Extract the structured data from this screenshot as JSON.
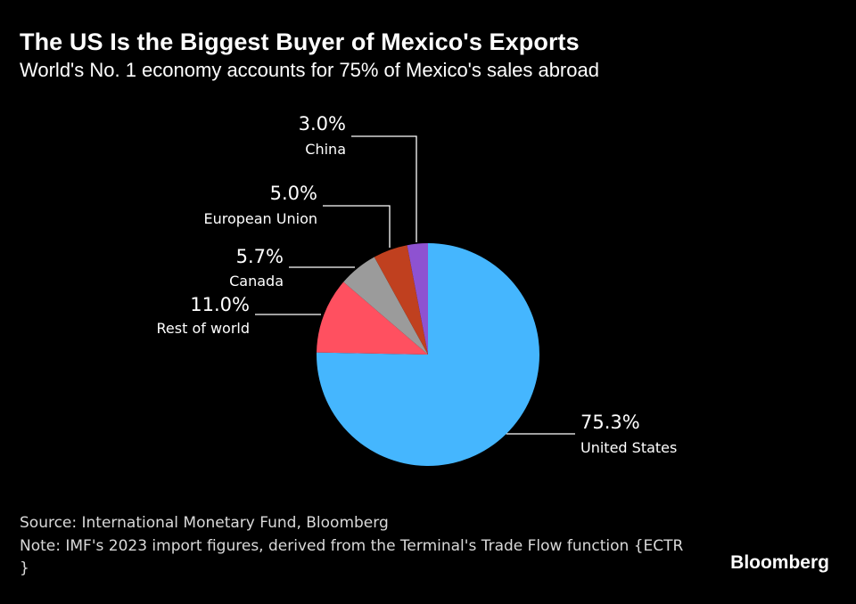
{
  "header": {
    "title": "The US Is the Biggest Buyer of Mexico's Exports",
    "subtitle": "World's No. 1 economy accounts for 75% of Mexico's sales abroad"
  },
  "footer": {
    "source": "Source: International Monetary Fund, Bloomberg",
    "note": "Note: IMF's 2023 import figures, derived from the Terminal's Trade Flow function {ECTR }",
    "brand": "Bloomberg"
  },
  "chart_data": {
    "type": "pie",
    "title": "The US Is the Biggest Buyer of Mexico's Exports",
    "subtitle": "World's No. 1 economy accounts for 75% of Mexico's sales abroad",
    "slices": [
      {
        "label": "United States",
        "value": 75.3,
        "display": "75.3%",
        "color": "#45b6fe"
      },
      {
        "label": "Rest of world",
        "value": 11.0,
        "display": "11.0%",
        "color": "#ff5060"
      },
      {
        "label": "Canada",
        "value": 5.7,
        "display": "5.7%",
        "color": "#9b9b9b"
      },
      {
        "label": "European Union",
        "value": 5.0,
        "display": "5.0%",
        "color": "#c0401f"
      },
      {
        "label": "China",
        "value": 3.0,
        "display": "3.0%",
        "color": "#8e52d1"
      }
    ]
  }
}
